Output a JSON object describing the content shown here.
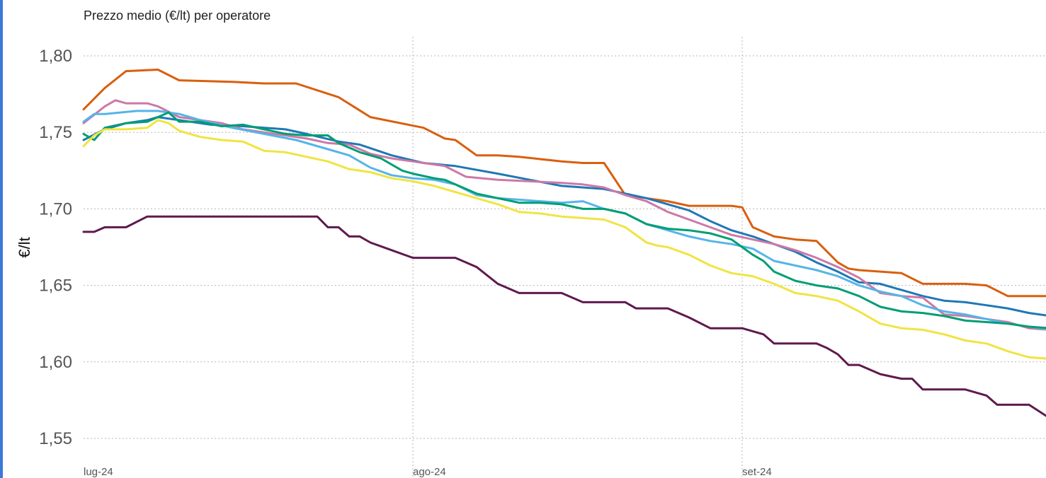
{
  "chart_data": {
    "type": "line",
    "title": "Prezzo medio (€/lt) per operatore",
    "ylabel": "€/lt",
    "xlabel": "",
    "ylim": [
      1.55,
      1.81
    ],
    "yticks": [
      "1,80",
      "1,75",
      "1,70",
      "1,65",
      "1,60",
      "1,55"
    ],
    "ytick_values": [
      1.8,
      1.75,
      1.7,
      1.65,
      1.6,
      1.55
    ],
    "xticks": [
      "lug-24",
      "ago-24",
      "set-24"
    ],
    "xtick_values": [
      1,
      32,
      63
    ],
    "xlim": [
      1,
      91
    ],
    "grid": true,
    "legend": "none",
    "series": [
      {
        "color": "#d95f0e",
        "x": [
          1,
          3,
          5,
          8,
          10,
          15,
          18,
          21,
          25,
          28,
          33,
          35,
          36,
          38,
          40,
          42,
          46,
          48,
          50,
          52,
          54,
          56,
          58,
          60,
          62,
          63,
          64,
          66,
          68,
          70,
          72,
          73,
          74,
          78,
          80,
          82,
          84,
          86,
          88,
          92
        ],
        "y": [
          1.765,
          1.779,
          1.79,
          1.791,
          1.784,
          1.783,
          1.782,
          1.782,
          1.773,
          1.76,
          1.753,
          1.746,
          1.745,
          1.735,
          1.735,
          1.734,
          1.731,
          1.73,
          1.73,
          1.709,
          1.707,
          1.705,
          1.702,
          1.702,
          1.702,
          1.701,
          1.688,
          1.682,
          1.68,
          1.679,
          1.665,
          1.661,
          1.66,
          1.658,
          1.651,
          1.651,
          1.651,
          1.65,
          1.643,
          1.643
        ]
      },
      {
        "color": "#1f78b4",
        "x": [
          1,
          3,
          5,
          7,
          8,
          10,
          13,
          16,
          20,
          22,
          25,
          27,
          30,
          33,
          36,
          40,
          43,
          46,
          50,
          52,
          54,
          56,
          58,
          60,
          62,
          64,
          66,
          68,
          70,
          72,
          74,
          76,
          78,
          80,
          82,
          84,
          86,
          88,
          90,
          92
        ],
        "y": [
          1.745,
          1.752,
          1.756,
          1.758,
          1.76,
          1.758,
          1.755,
          1.754,
          1.752,
          1.749,
          1.744,
          1.742,
          1.735,
          1.73,
          1.728,
          1.723,
          1.719,
          1.715,
          1.713,
          1.71,
          1.707,
          1.703,
          1.699,
          1.692,
          1.686,
          1.682,
          1.677,
          1.672,
          1.665,
          1.659,
          1.652,
          1.651,
          1.647,
          1.643,
          1.64,
          1.639,
          1.637,
          1.635,
          1.632,
          1.63
        ]
      },
      {
        "color": "#cc79a7",
        "x": [
          1,
          3,
          4,
          5,
          7,
          8,
          10,
          12,
          14,
          16,
          18,
          20,
          22,
          24,
          26,
          28,
          30,
          32,
          33,
          35,
          37,
          40,
          43,
          46,
          48,
          50,
          52,
          54,
          56,
          58,
          60,
          62,
          64,
          66,
          68,
          70,
          72,
          74,
          76,
          78,
          80,
          82,
          84,
          86,
          88,
          90,
          92
        ],
        "y": [
          1.756,
          1.767,
          1.771,
          1.769,
          1.769,
          1.767,
          1.76,
          1.758,
          1.756,
          1.752,
          1.75,
          1.748,
          1.746,
          1.743,
          1.742,
          1.736,
          1.733,
          1.731,
          1.73,
          1.728,
          1.721,
          1.719,
          1.718,
          1.717,
          1.716,
          1.714,
          1.709,
          1.705,
          1.698,
          1.693,
          1.688,
          1.683,
          1.68,
          1.677,
          1.673,
          1.668,
          1.662,
          1.655,
          1.645,
          1.643,
          1.642,
          1.631,
          1.63,
          1.628,
          1.626,
          1.622,
          1.621
        ]
      },
      {
        "color": "#56b4e9",
        "x": [
          1,
          2,
          3,
          6,
          8,
          10,
          12,
          15,
          18,
          21,
          24,
          26,
          28,
          30,
          32,
          34,
          36,
          38,
          40,
          42,
          44,
          46,
          48,
          50,
          52,
          54,
          56,
          58,
          60,
          62,
          64,
          66,
          68,
          70,
          72,
          74,
          76,
          78,
          80,
          82,
          84,
          86,
          88,
          90,
          92
        ],
        "y": [
          1.757,
          1.762,
          1.762,
          1.764,
          1.764,
          1.762,
          1.758,
          1.753,
          1.749,
          1.745,
          1.739,
          1.735,
          1.727,
          1.722,
          1.72,
          1.719,
          1.716,
          1.709,
          1.707,
          1.706,
          1.705,
          1.704,
          1.705,
          1.7,
          1.697,
          1.69,
          1.686,
          1.682,
          1.679,
          1.677,
          1.674,
          1.666,
          1.663,
          1.66,
          1.656,
          1.65,
          1.646,
          1.643,
          1.637,
          1.633,
          1.631,
          1.628,
          1.625,
          1.623,
          1.621
        ]
      },
      {
        "color": "#009e73",
        "x": [
          1,
          2,
          3,
          5,
          7,
          8,
          9,
          10,
          12,
          14,
          16,
          18,
          20,
          22,
          24,
          25,
          27,
          29,
          31,
          32,
          34,
          35,
          36,
          38,
          40,
          42,
          44,
          46,
          48,
          50,
          52,
          54,
          56,
          58,
          60,
          62,
          63,
          64,
          65,
          66,
          68,
          70,
          72,
          74,
          76,
          78,
          80,
          82,
          84,
          86,
          88,
          90,
          92
        ],
        "y": [
          1.749,
          1.745,
          1.753,
          1.756,
          1.757,
          1.76,
          1.763,
          1.757,
          1.757,
          1.754,
          1.755,
          1.752,
          1.749,
          1.748,
          1.748,
          1.743,
          1.737,
          1.733,
          1.725,
          1.723,
          1.72,
          1.719,
          1.716,
          1.71,
          1.707,
          1.704,
          1.704,
          1.703,
          1.7,
          1.7,
          1.697,
          1.69,
          1.687,
          1.686,
          1.684,
          1.68,
          1.675,
          1.67,
          1.666,
          1.659,
          1.653,
          1.65,
          1.648,
          1.643,
          1.636,
          1.633,
          1.632,
          1.63,
          1.627,
          1.626,
          1.625,
          1.623,
          1.622
        ]
      },
      {
        "color": "#f0e442",
        "x": [
          1,
          2,
          3,
          5,
          7,
          8,
          9,
          10,
          12,
          14,
          16,
          18,
          20,
          22,
          24,
          26,
          28,
          30,
          32,
          34,
          36,
          38,
          40,
          42,
          44,
          46,
          48,
          50,
          52,
          54,
          55,
          56,
          58,
          60,
          62,
          64,
          66,
          68,
          70,
          72,
          74,
          76,
          78,
          80,
          82,
          84,
          86,
          88,
          90,
          92
        ],
        "y": [
          1.741,
          1.748,
          1.752,
          1.752,
          1.753,
          1.758,
          1.756,
          1.751,
          1.747,
          1.745,
          1.744,
          1.738,
          1.737,
          1.734,
          1.731,
          1.726,
          1.724,
          1.72,
          1.718,
          1.715,
          1.711,
          1.707,
          1.703,
          1.698,
          1.697,
          1.695,
          1.694,
          1.693,
          1.688,
          1.678,
          1.676,
          1.675,
          1.67,
          1.663,
          1.658,
          1.656,
          1.651,
          1.645,
          1.643,
          1.64,
          1.633,
          1.625,
          1.622,
          1.621,
          1.618,
          1.614,
          1.612,
          1.607,
          1.603,
          1.602
        ]
      },
      {
        "color": "#5e1a4d",
        "x": [
          1,
          2,
          3,
          5,
          7,
          8,
          10,
          13,
          16,
          20,
          23,
          24,
          25,
          26,
          27,
          28,
          30,
          32,
          34,
          36,
          38,
          40,
          42,
          44,
          46,
          48,
          50,
          51,
          52,
          53,
          54,
          56,
          58,
          60,
          61,
          62,
          63,
          65,
          66,
          67,
          68,
          70,
          71,
          72,
          73,
          74,
          76,
          78,
          79,
          80,
          82,
          84,
          86,
          87,
          88,
          90,
          92
        ],
        "y": [
          1.685,
          1.685,
          1.688,
          1.688,
          1.695,
          1.695,
          1.695,
          1.695,
          1.695,
          1.695,
          1.695,
          1.688,
          1.688,
          1.682,
          1.682,
          1.678,
          1.673,
          1.668,
          1.668,
          1.668,
          1.662,
          1.651,
          1.645,
          1.645,
          1.645,
          1.639,
          1.639,
          1.639,
          1.639,
          1.635,
          1.635,
          1.635,
          1.629,
          1.622,
          1.622,
          1.622,
          1.622,
          1.618,
          1.612,
          1.612,
          1.612,
          1.612,
          1.609,
          1.605,
          1.598,
          1.598,
          1.592,
          1.589,
          1.589,
          1.582,
          1.582,
          1.582,
          1.578,
          1.572,
          1.572,
          1.572,
          1.563
        ]
      }
    ]
  }
}
